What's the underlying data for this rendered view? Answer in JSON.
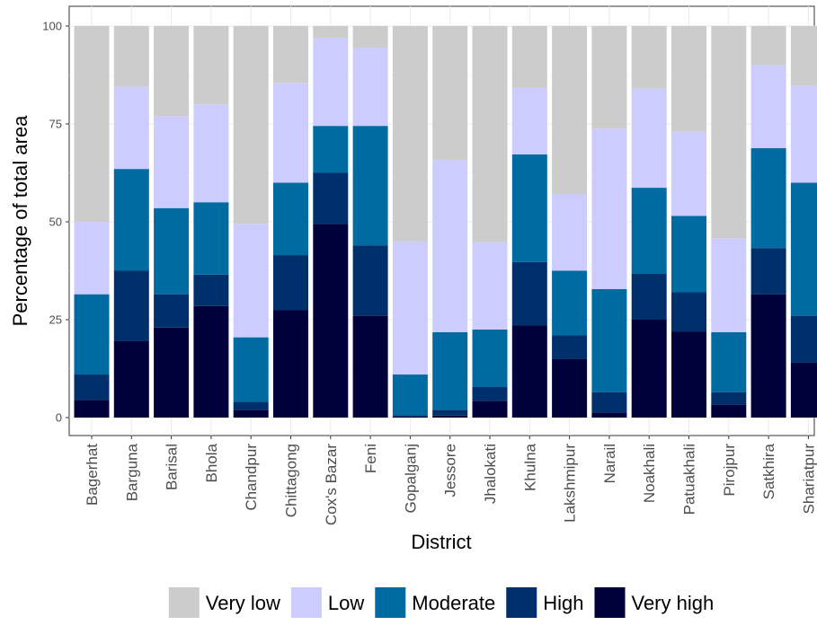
{
  "chart_data": {
    "type": "bar",
    "stacked": true,
    "title": "",
    "xlabel": "District",
    "ylabel": "Percentage of total area",
    "ylim": [
      0,
      100
    ],
    "yticks": [
      0,
      25,
      50,
      75,
      100
    ],
    "grid": true,
    "legend_position": "bottom",
    "categories": [
      "Bagerhat",
      "Barguna",
      "Barisal",
      "Bhola",
      "Chandpur",
      "Chittagong",
      "Cox's Bazar",
      "Feni",
      "Gopalganj",
      "Jessore",
      "Jhalokati",
      "Khulna",
      "Lakshmipur",
      "Narail",
      "Noakhali",
      "Patuakhali",
      "Pirojpur",
      "Satkhira",
      "Shariatpur"
    ],
    "series": [
      {
        "name": "Very high",
        "color": "#00003a",
        "values": [
          4.5,
          19.5,
          23,
          28.5,
          2,
          27.5,
          49.5,
          26,
          0.3,
          0.5,
          4.3,
          23.5,
          15,
          1.3,
          25,
          22,
          3.3,
          31.5,
          14
        ]
      },
      {
        "name": "High",
        "color": "#00306b",
        "values": [
          6.5,
          18,
          8.5,
          8,
          2,
          14,
          13,
          18,
          0.3,
          1.5,
          3.5,
          16.2,
          6,
          5.2,
          11.7,
          10,
          3.2,
          11.8,
          12
        ]
      },
      {
        "name": "Moderate",
        "color": "#006ba1",
        "values": [
          20.5,
          26,
          22,
          18.5,
          16.5,
          18.5,
          12,
          30.5,
          10.4,
          19.8,
          14.7,
          27.5,
          16.5,
          26.3,
          22,
          19.5,
          15.3,
          25.5,
          34
        ]
      },
      {
        "name": "Low",
        "color": "#ccccff",
        "values": [
          18.5,
          21,
          23.5,
          25,
          29,
          25.5,
          22.5,
          20,
          34,
          44,
          22.3,
          17,
          19.5,
          41,
          25.3,
          21.5,
          24,
          21.2,
          24.7
        ]
      },
      {
        "name": "Very low",
        "color": "#cccccc",
        "values": [
          50,
          15.5,
          23,
          20,
          50.5,
          14.5,
          3,
          5.5,
          55,
          34.2,
          55.2,
          15.8,
          43,
          26.2,
          16,
          27,
          54.2,
          10,
          15.3
        ]
      }
    ]
  }
}
